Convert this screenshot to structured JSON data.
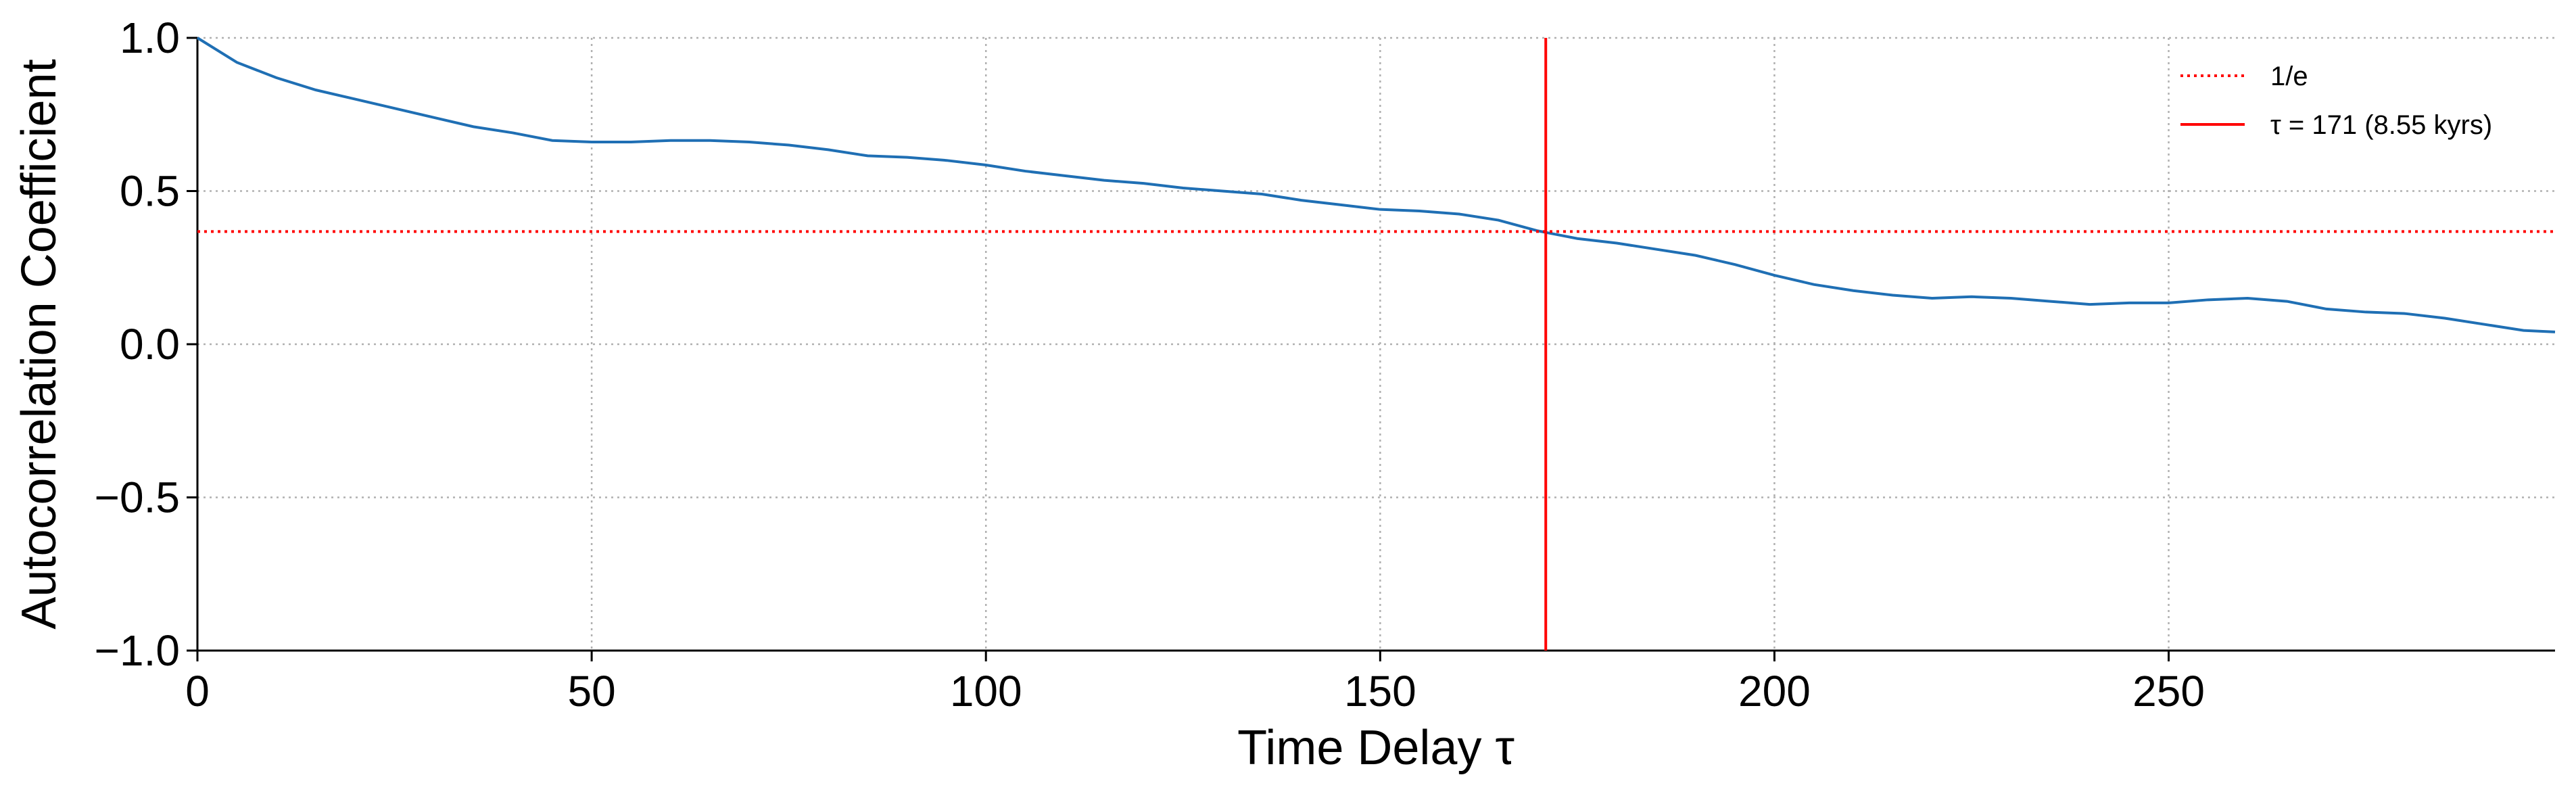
{
  "chart_data": {
    "type": "line",
    "x_label": "Time Delay τ",
    "y_label": "Autocorrelation Coefficient",
    "x": [
      0,
      5,
      10,
      15,
      20,
      25,
      30,
      35,
      40,
      45,
      50,
      55,
      60,
      65,
      70,
      75,
      80,
      85,
      90,
      95,
      100,
      105,
      110,
      115,
      120,
      125,
      130,
      135,
      140,
      145,
      150,
      155,
      160,
      165,
      170,
      175,
      180,
      185,
      190,
      195,
      200,
      205,
      210,
      215,
      220,
      225,
      230,
      235,
      240,
      245,
      250,
      255,
      260,
      265,
      270,
      275,
      280,
      285,
      290,
      295,
      299
    ],
    "series": [
      {
        "color": "#1f6fb4",
        "values": [
          1.0,
          0.92,
          0.87,
          0.83,
          0.8,
          0.77,
          0.74,
          0.71,
          0.69,
          0.665,
          0.66,
          0.66,
          0.665,
          0.665,
          0.66,
          0.65,
          0.635,
          0.615,
          0.61,
          0.6,
          0.585,
          0.565,
          0.55,
          0.535,
          0.525,
          0.51,
          0.5,
          0.49,
          0.47,
          0.455,
          0.44,
          0.435,
          0.425,
          0.405,
          0.37,
          0.345,
          0.33,
          0.31,
          0.29,
          0.26,
          0.225,
          0.195,
          0.175,
          0.16,
          0.15,
          0.155,
          0.15,
          0.14,
          0.13,
          0.135,
          0.135,
          0.145,
          0.15,
          0.14,
          0.115,
          0.105,
          0.1,
          0.085,
          0.065,
          0.045,
          0.04
        ]
      }
    ],
    "hline": {
      "name": "1/e",
      "value": 0.3679,
      "color": "#ff0000"
    },
    "vline": {
      "name": "τ = 171 (8.55 kyrs)",
      "value": 171,
      "color": "#ff0000"
    },
    "xlim": [
      0,
      299
    ],
    "xticks": [
      0,
      50,
      100,
      150,
      200,
      250
    ],
    "ylim": [
      -1,
      1
    ],
    "yticks": [
      {
        "value": -1,
        "label": "−1.0"
      },
      {
        "value": -0.5,
        "label": "−0.5"
      },
      {
        "value": 0,
        "label": "0.0"
      },
      {
        "value": 0.5,
        "label": "0.5"
      },
      {
        "value": 1,
        "label": "1.0"
      }
    ],
    "grid": true,
    "legend": "upper right"
  }
}
